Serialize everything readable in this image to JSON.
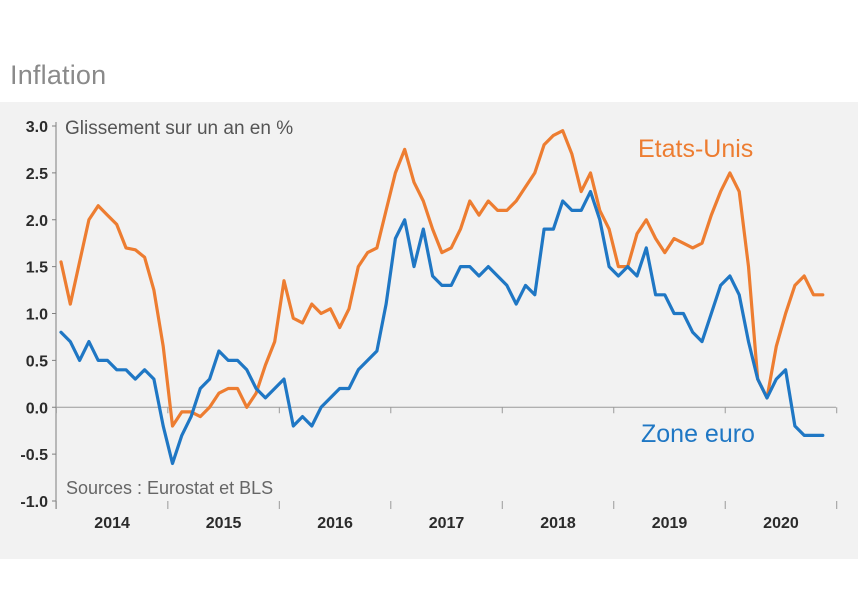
{
  "page_title": "Inflation",
  "chart_data": {
    "type": "line",
    "title": "Inflation",
    "ylabel": "Glissement sur un an en %",
    "xlabel": "",
    "source": "Sources : Eurostat et BLS",
    "ylim": [
      -1.0,
      3.0
    ],
    "yticks": [
      "3.0",
      "2.5",
      "2.0",
      "1.5",
      "1.0",
      "0.5",
      "0.0",
      "-0.5",
      "-1.0"
    ],
    "ytick_values": [
      3.0,
      2.5,
      2.0,
      1.5,
      1.0,
      0.5,
      0.0,
      -0.5,
      -1.0
    ],
    "xticks": [
      "2014",
      "2015",
      "2016",
      "2017",
      "2018",
      "2019",
      "2020"
    ],
    "x_start": "2014-01",
    "grid": false,
    "series": [
      {
        "name": "Etats-Unis",
        "color": "#ed7d31",
        "values": [
          1.55,
          1.1,
          1.55,
          2.0,
          2.15,
          2.05,
          1.95,
          1.7,
          1.68,
          1.6,
          1.25,
          0.65,
          -0.2,
          -0.05,
          -0.05,
          -0.1,
          0.0,
          0.15,
          0.2,
          0.2,
          0.0,
          0.15,
          0.45,
          0.7,
          1.35,
          0.95,
          0.9,
          1.1,
          1.0,
          1.05,
          0.85,
          1.05,
          1.5,
          1.65,
          1.7,
          2.1,
          2.5,
          2.75,
          2.4,
          2.2,
          1.9,
          1.65,
          1.7,
          1.9,
          2.2,
          2.05,
          2.2,
          2.1,
          2.1,
          2.2,
          2.35,
          2.5,
          2.8,
          2.9,
          2.95,
          2.7,
          2.3,
          2.5,
          2.1,
          1.9,
          1.5,
          1.5,
          1.85,
          2.0,
          1.8,
          1.65,
          1.8,
          1.75,
          1.7,
          1.75,
          2.05,
          2.3,
          2.5,
          2.3,
          1.5,
          0.3,
          0.1,
          0.65,
          1.0,
          1.3,
          1.4,
          1.2,
          1.2
        ]
      },
      {
        "name": "Zone euro",
        "color": "#1f77c4",
        "values": [
          0.8,
          0.7,
          0.5,
          0.7,
          0.5,
          0.5,
          0.4,
          0.4,
          0.3,
          0.4,
          0.3,
          -0.2,
          -0.6,
          -0.3,
          -0.1,
          0.2,
          0.3,
          0.6,
          0.5,
          0.5,
          0.4,
          0.2,
          0.1,
          0.2,
          0.3,
          -0.2,
          -0.1,
          -0.2,
          0.0,
          0.1,
          0.2,
          0.2,
          0.4,
          0.5,
          0.6,
          1.1,
          1.8,
          2.0,
          1.5,
          1.9,
          1.4,
          1.3,
          1.3,
          1.5,
          1.5,
          1.4,
          1.5,
          1.4,
          1.3,
          1.1,
          1.3,
          1.2,
          1.9,
          1.9,
          2.2,
          2.1,
          2.1,
          2.3,
          2.0,
          1.5,
          1.4,
          1.5,
          1.4,
          1.7,
          1.2,
          1.2,
          1.0,
          1.0,
          0.8,
          0.7,
          1.0,
          1.3,
          1.4,
          1.2,
          0.7,
          0.3,
          0.1,
          0.3,
          0.4,
          -0.2,
          -0.3,
          -0.3,
          -0.3
        ]
      }
    ]
  }
}
